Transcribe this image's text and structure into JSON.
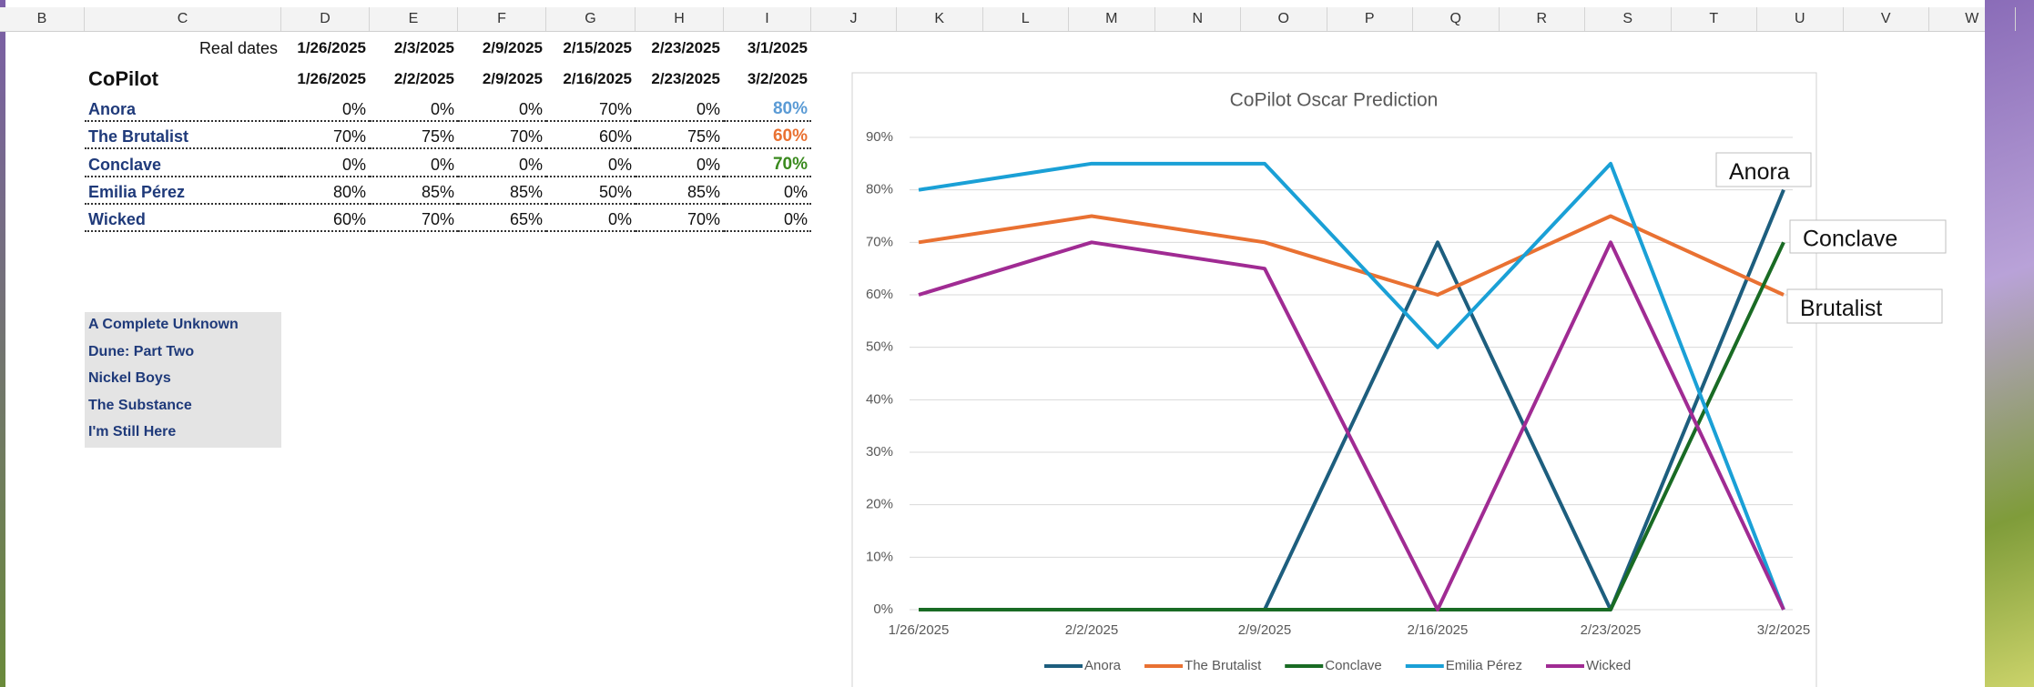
{
  "columns": [
    "B",
    "C",
    "D",
    "E",
    "F",
    "G",
    "H",
    "I",
    "J",
    "K",
    "L",
    "M",
    "N",
    "O",
    "P",
    "Q",
    "R",
    "S",
    "T",
    "U",
    "V",
    "W"
  ],
  "table": {
    "header": [
      "Real dates",
      "1/26/2025",
      "2/3/2025",
      "2/9/2025",
      "2/15/2025",
      "2/23/2025",
      "3/1/2025"
    ],
    "rows": [
      [
        "CoPilot",
        "1/26/2025",
        "2/2/2025",
        "2/9/2025",
        "2/16/2025",
        "2/23/2025",
        "3/2/2025"
      ],
      [
        "Anora",
        "0%",
        "0%",
        "0%",
        "70%",
        "0%",
        "80%"
      ],
      [
        "The Brutalist",
        "70%",
        "75%",
        "70%",
        "60%",
        "75%",
        "60%"
      ],
      [
        "Conclave",
        "0%",
        "0%",
        "0%",
        "0%",
        "0%",
        "70%"
      ],
      [
        "Emilia Pérez",
        "80%",
        "85%",
        "85%",
        "50%",
        "85%",
        "0%"
      ],
      [
        "Wicked",
        "60%",
        "70%",
        "65%",
        "0%",
        "70%",
        "0%"
      ]
    ]
  },
  "list": [
    "A Complete Unknown",
    "Dune: Part Two",
    "Nickel Boys",
    "The Substance",
    "I'm Still Here"
  ],
  "callouts": [
    "Anora",
    "Conclave",
    "Brutalist"
  ],
  "chart_data": {
    "type": "line",
    "title": "CoPilot Oscar Prediction",
    "categories": [
      "1/26/2025",
      "2/2/2025",
      "2/9/2025",
      "2/16/2025",
      "2/23/2025",
      "3/2/2025"
    ],
    "series": [
      {
        "name": "Anora",
        "color": "#1d5e7e",
        "values": [
          0,
          0,
          0,
          70,
          0,
          80
        ]
      },
      {
        "name": "The Brutalist",
        "color": "#e97132",
        "values": [
          70,
          75,
          70,
          60,
          75,
          60
        ]
      },
      {
        "name": "Conclave",
        "color": "#196b24",
        "values": [
          0,
          0,
          0,
          0,
          0,
          70
        ]
      },
      {
        "name": "Emilia Pérez",
        "color": "#1aa0d6",
        "values": [
          80,
          85,
          85,
          50,
          85,
          0
        ]
      },
      {
        "name": "Wicked",
        "color": "#a02b93",
        "values": [
          60,
          70,
          65,
          0,
          70,
          0
        ]
      }
    ],
    "ylim": [
      0,
      90
    ],
    "yticks": [
      {
        "value": 0,
        "label": "0%"
      },
      {
        "value": 10,
        "label": "10%"
      },
      {
        "value": 20,
        "label": "20%"
      },
      {
        "value": 30,
        "label": "30%"
      },
      {
        "value": 40,
        "label": "40%"
      },
      {
        "value": 50,
        "label": "50%"
      },
      {
        "value": 60,
        "label": "60%"
      },
      {
        "value": 70,
        "label": "70%"
      },
      {
        "value": 80,
        "label": "80%"
      },
      {
        "value": 90,
        "label": "90%"
      }
    ],
    "grid": true,
    "legend": "bottom"
  }
}
